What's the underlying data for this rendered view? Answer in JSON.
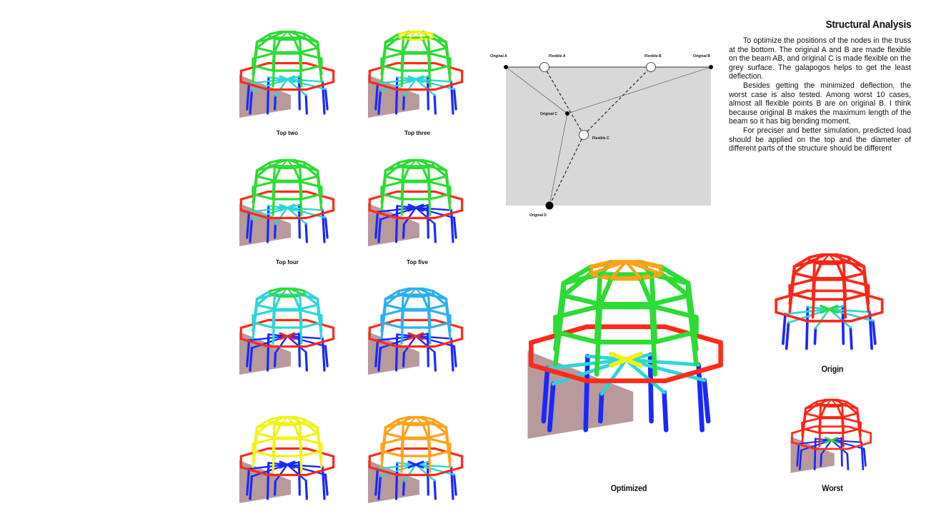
{
  "title": "Structural Analysis",
  "paragraphs": [
    "To optimize the positions of the nodes in the truss at the bottom. The original A and B are made flexible on the beam AB, and original C is made flexible on the grey surface. The galapogos helps to get the least deflection.",
    "Besides getting the minimized deflection, the worst case is also tested. Among worst 10 cases, almost all flexible points B are on original B. I think because original B makes the maximum length of the beam so it has big bending moment.",
    "For preciser and better simulation, predicted load should be applied on the top and the diameter of different parts of the structure should be different"
  ],
  "diagram": {
    "labels": {
      "original_a": "Original A",
      "flexible_a": "Flexible A",
      "flexible_b": "Flexible B",
      "original_b": "Original B",
      "original_c": "Original C",
      "flexible_c": "Flexible C",
      "original_d": "Original D"
    },
    "colors": {
      "surface": "#d8d8d8",
      "node": "#000000",
      "line": "#333333"
    }
  },
  "captions": {
    "top_two": "Top two",
    "top_three": "Top three",
    "top_four": "Top four",
    "top_five": "Top five",
    "optimized": "Optimized",
    "origin": "Origin",
    "worst": "Worst"
  },
  "palette": {
    "ring": "#ff2a1a",
    "wall": "#b89a9c",
    "blue": "#1a28ff",
    "green": "#2cdc34",
    "cyan": "#2cd6d8",
    "yellow": "#f2f218",
    "orange": "#ffa21a",
    "red": "#ff2416"
  }
}
